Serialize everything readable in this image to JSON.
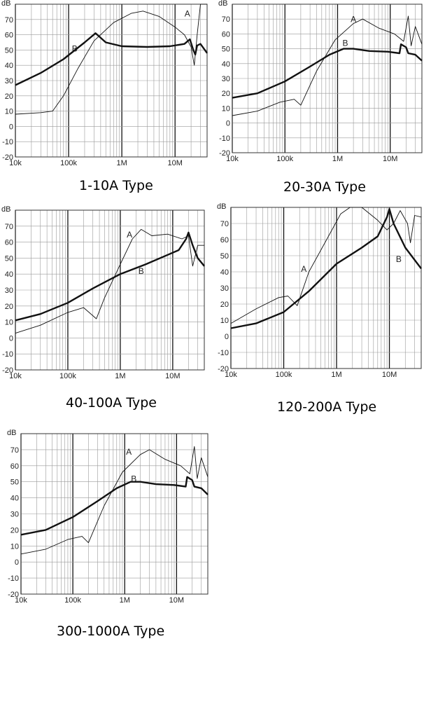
{
  "chart_data": [
    {
      "type": "line",
      "title": "1-10A Type",
      "ylabel": "dB",
      "x_scale": "log",
      "xlim": [
        10000,
        40000000
      ],
      "ylim": [
        -20,
        80
      ],
      "x_ticks": [
        "10k",
        "100k",
        "1M",
        "10M"
      ],
      "y_ticks": [
        "70",
        "60",
        "50",
        "40",
        "30",
        "20",
        "10",
        "0",
        "-10",
        "-20"
      ],
      "grid": true,
      "series": [
        {
          "name": "A",
          "weight": "thin",
          "points": [
            [
              10000,
              8
            ],
            [
              30000,
              9
            ],
            [
              50000,
              10
            ],
            [
              80000,
              20
            ],
            [
              150000,
              38
            ],
            [
              300000,
              56
            ],
            [
              700000,
              68
            ],
            [
              1500000,
              74
            ],
            [
              2500000,
              75.5
            ],
            [
              5000000,
              72
            ],
            [
              10000000,
              65
            ],
            [
              15000000,
              60
            ],
            [
              20000000,
              52
            ],
            [
              23000000,
              40
            ],
            [
              26000000,
              60
            ],
            [
              30000,
              null
            ],
            [
              30000000,
              80
            ],
            [
              40000000,
              80
            ]
          ]
        },
        {
          "name": "B",
          "weight": "thick",
          "points": [
            [
              10000,
              27
            ],
            [
              30000,
              35
            ],
            [
              80000,
              44
            ],
            [
              200000,
              55
            ],
            [
              320000,
              61
            ],
            [
              500000,
              55
            ],
            [
              1000000,
              52.5
            ],
            [
              3000000,
              52
            ],
            [
              8000000,
              52.5
            ],
            [
              15000000,
              54
            ],
            [
              19000000,
              57
            ],
            [
              22000000,
              50
            ],
            [
              24000000,
              47
            ],
            [
              26000000,
              53
            ],
            [
              30000000,
              54
            ],
            [
              40000000,
              48
            ]
          ]
        }
      ]
    },
    {
      "type": "line",
      "title": "20-30A Type",
      "ylabel": "dB",
      "x_scale": "log",
      "xlim": [
        10000,
        40000000
      ],
      "ylim": [
        -20,
        80
      ],
      "x_ticks": [
        "10k",
        "100k",
        "1M",
        "10M"
      ],
      "y_ticks": [
        "70",
        "60",
        "50",
        "40",
        "30",
        "20",
        "10",
        "0",
        "-10",
        "-20"
      ],
      "grid": true,
      "series": [
        {
          "name": "A",
          "weight": "thin",
          "points": [
            [
              10000,
              5
            ],
            [
              30000,
              8
            ],
            [
              80000,
              14
            ],
            [
              150000,
              16
            ],
            [
              200000,
              12
            ],
            [
              400000,
              35
            ],
            [
              900000,
              56
            ],
            [
              2000000,
              67
            ],
            [
              3000000,
              70
            ],
            [
              6000000,
              64
            ],
            [
              12000000,
              60
            ],
            [
              18000000,
              55
            ],
            [
              22000000,
              72
            ],
            [
              25000000,
              52
            ],
            [
              30000000,
              65
            ],
            [
              40000000,
              53
            ]
          ]
        },
        {
          "name": "B",
          "weight": "thick",
          "points": [
            [
              10000,
              17
            ],
            [
              30000,
              20
            ],
            [
              100000,
              28
            ],
            [
              300000,
              38
            ],
            [
              700000,
              46
            ],
            [
              1300000,
              50
            ],
            [
              2000000,
              50
            ],
            [
              4000000,
              48.5
            ],
            [
              9000000,
              48
            ],
            [
              15000000,
              47
            ],
            [
              16000000,
              53
            ],
            [
              20000000,
              51
            ],
            [
              22000000,
              47
            ],
            [
              30000000,
              46
            ],
            [
              40000000,
              42
            ]
          ]
        }
      ]
    },
    {
      "type": "line",
      "title": "40-100A Type",
      "ylabel": "dB",
      "x_scale": "log",
      "xlim": [
        10000,
        40000000
      ],
      "ylim": [
        -20,
        80
      ],
      "x_ticks": [
        "10k",
        "100k",
        "1M",
        "10M"
      ],
      "y_ticks": [
        "70",
        "60",
        "50",
        "40",
        "30",
        "20",
        "10",
        "0",
        "-10",
        "-20"
      ],
      "grid": true,
      "series": [
        {
          "name": "A",
          "weight": "thin",
          "points": [
            [
              10000,
              3
            ],
            [
              30000,
              8
            ],
            [
              100000,
              16
            ],
            [
              200000,
              19
            ],
            [
              350000,
              12
            ],
            [
              500000,
              25
            ],
            [
              900000,
              43
            ],
            [
              1700000,
              62
            ],
            [
              2500000,
              68
            ],
            [
              4000000,
              64
            ],
            [
              8000000,
              65
            ],
            [
              15000000,
              62
            ],
            [
              20000000,
              64
            ],
            [
              24000000,
              45
            ],
            [
              30000000,
              58
            ],
            [
              40000000,
              58
            ]
          ]
        },
        {
          "name": "B",
          "weight": "thick",
          "points": [
            [
              10000,
              11
            ],
            [
              30000,
              15
            ],
            [
              100000,
              22
            ],
            [
              300000,
              31
            ],
            [
              1000000,
              40
            ],
            [
              3000000,
              46
            ],
            [
              8000000,
              52
            ],
            [
              13000000,
              55
            ],
            [
              18000000,
              62
            ],
            [
              20000000,
              66
            ],
            [
              24000000,
              58
            ],
            [
              30000000,
              50
            ],
            [
              40000000,
              45
            ]
          ]
        }
      ]
    },
    {
      "type": "line",
      "title": "120-200A Type",
      "ylabel": "dB",
      "x_scale": "log",
      "xlim": [
        10000,
        40000000
      ],
      "ylim": [
        -20,
        80
      ],
      "x_ticks": [
        "10k",
        "100k",
        "1M",
        "10M"
      ],
      "y_ticks": [
        "70",
        "60",
        "50",
        "40",
        "30",
        "20",
        "10",
        "0",
        "-10",
        "-20"
      ],
      "grid": true,
      "series": [
        {
          "name": "A",
          "weight": "thin",
          "points": [
            [
              10000,
              8
            ],
            [
              30000,
              17
            ],
            [
              80000,
              24
            ],
            [
              120000,
              25
            ],
            [
              180000,
              19
            ],
            [
              300000,
              40
            ],
            [
              600000,
              58
            ],
            [
              1200000,
              76
            ],
            [
              1800000,
              80
            ],
            [
              3000000,
              80
            ],
            [
              6000000,
              72
            ],
            [
              9000000,
              66
            ],
            [
              12000000,
              70
            ],
            [
              16000000,
              78
            ],
            [
              22000000,
              70
            ],
            [
              25000000,
              58
            ],
            [
              30000000,
              75
            ],
            [
              40000000,
              74
            ]
          ]
        },
        {
          "name": "B",
          "weight": "thick",
          "points": [
            [
              10000,
              5
            ],
            [
              30000,
              8
            ],
            [
              100000,
              15
            ],
            [
              300000,
              28
            ],
            [
              1000000,
              45
            ],
            [
              3000000,
              55
            ],
            [
              6000000,
              62
            ],
            [
              9000000,
              74
            ],
            [
              10000000,
              79
            ],
            [
              12000000,
              70
            ],
            [
              20000000,
              55
            ],
            [
              40000000,
              42
            ]
          ]
        }
      ]
    },
    {
      "type": "line",
      "title": "300-1000A Type",
      "ylabel": "dB",
      "x_scale": "log",
      "xlim": [
        10000,
        40000000
      ],
      "ylim": [
        -20,
        80
      ],
      "x_ticks": [
        "10k",
        "100k",
        "1M",
        "10M"
      ],
      "y_ticks": [
        "70",
        "60",
        "50",
        "40",
        "30",
        "20",
        "10",
        "0",
        "-10",
        "-20"
      ],
      "grid": true,
      "series": [
        {
          "name": "A",
          "weight": "thin",
          "points": [
            [
              10000,
              5
            ],
            [
              30000,
              8
            ],
            [
              80000,
              14
            ],
            [
              150000,
              16
            ],
            [
              200000,
              12
            ],
            [
              400000,
              35
            ],
            [
              900000,
              56
            ],
            [
              2000000,
              67
            ],
            [
              3000000,
              70
            ],
            [
              6000000,
              64
            ],
            [
              12000000,
              60
            ],
            [
              18000000,
              55
            ],
            [
              22000000,
              72
            ],
            [
              25000000,
              52
            ],
            [
              30000000,
              65
            ],
            [
              40000000,
              53
            ]
          ]
        },
        {
          "name": "B",
          "weight": "thick",
          "points": [
            [
              10000,
              17
            ],
            [
              30000,
              20
            ],
            [
              100000,
              28
            ],
            [
              300000,
              38
            ],
            [
              700000,
              46
            ],
            [
              1300000,
              50
            ],
            [
              2000000,
              50
            ],
            [
              4000000,
              48.5
            ],
            [
              9000000,
              48
            ],
            [
              15000000,
              47
            ],
            [
              16000000,
              53
            ],
            [
              20000000,
              51
            ],
            [
              22000000,
              47
            ],
            [
              30000000,
              46
            ],
            [
              40000000,
              42
            ]
          ]
        }
      ]
    }
  ]
}
